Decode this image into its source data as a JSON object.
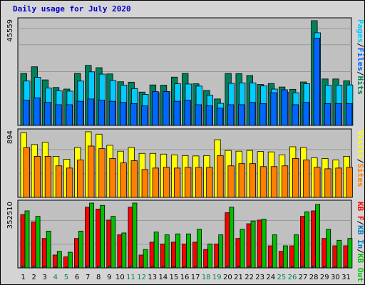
{
  "title": "Daily usage for July 2020",
  "colors": {
    "pages": "#00ccff",
    "files": "#0066ff",
    "hits": "#00805c",
    "visits": "#ffff00",
    "sites": "#ff8000",
    "kbf": "#ff0000",
    "kbin": "#0080c0",
    "kbout": "#00c000",
    "weekend": "#00805c",
    "weekday": "#000000",
    "panel": "#c0c0c0"
  },
  "chart_data": {
    "type": "bar",
    "categories": [
      "1",
      "2",
      "3",
      "4",
      "5",
      "6",
      "7",
      "8",
      "9",
      "10",
      "11",
      "12",
      "13",
      "14",
      "15",
      "16",
      "17",
      "18",
      "19",
      "20",
      "21",
      "22",
      "23",
      "24",
      "25",
      "26",
      "27",
      "28",
      "29",
      "30",
      "31"
    ],
    "weekend_days": [
      "4",
      "5",
      "11",
      "12",
      "18",
      "19",
      "25",
      "26"
    ],
    "panels": [
      {
        "max_label": "45559",
        "ylim": [
          0,
          45559
        ],
        "legend": [
          "Pages",
          "/",
          "Files",
          "/",
          "Hits"
        ],
        "series": [
          {
            "name": "Hits",
            "values": [
              22600,
              25500,
              19800,
              16500,
              15800,
              22600,
              26100,
              25100,
              22400,
              19000,
              18800,
              14500,
              17600,
              17500,
              21000,
              22600,
              18100,
              15200,
              11500,
              22600,
              22500,
              21700,
              17800,
              18200,
              16700,
              15700,
              18900,
              45559,
              20200,
              20200,
              19400
            ]
          },
          {
            "name": "Files",
            "values": [
              11000,
              12000,
              10000,
              9000,
              9000,
              10500,
              11500,
              11000,
              10500,
              10000,
              9500,
              8500,
              14700,
              14700,
              10500,
              11000,
              9000,
              8500,
              7500,
              9000,
              9000,
              10000,
              9500,
              14200,
              15500,
              9000,
              10000,
              38000,
              9500,
              9500,
              9500
            ]
          },
          {
            "name": "Pages",
            "values": [
              19300,
              20900,
              16300,
              15100,
              14900,
              19300,
              23300,
              22300,
              19500,
              17500,
              16000,
              13500,
              14300,
              14700,
              18100,
              18000,
              17100,
              13100,
              9600,
              18300,
              18500,
              18500,
              17200,
              15800,
              14500,
              14200,
              18100,
              40300,
              17500,
              17500,
              17600
            ]
          }
        ]
      },
      {
        "max_label": "894",
        "ylim": [
          0,
          894
        ],
        "legend": [
          "Visits",
          "/",
          "Sites"
        ],
        "series": [
          {
            "name": "Visits",
            "values": [
              880,
              720,
              750,
              560,
              520,
              680,
              894,
              862,
              710,
              630,
              680,
              600,
              600,
              590,
              580,
              570,
              565,
              570,
              786,
              640,
              630,
              640,
              625,
              620,
              580,
              690,
              680,
              540,
              530,
              510,
              560
            ]
          },
          {
            "name": "Sites",
            "values": [
              680,
              560,
              560,
              430,
              400,
              510,
              700,
              665,
              530,
              470,
              500,
              380,
              400,
              410,
              400,
              410,
              410,
              410,
              570,
              430,
              460,
              460,
              420,
              420,
              430,
              530,
              510,
              410,
              390,
              400,
              410
            ]
          }
        ]
      },
      {
        "max_label": "352510",
        "ylim": [
          0,
          352510
        ],
        "legend": [
          "KB F",
          "/",
          "KB In",
          "/",
          "KB Out"
        ],
        "series": [
          {
            "name": "KB F",
            "values": [
              290000,
              250000,
              160000,
              70000,
              60000,
              160000,
              330000,
              320000,
              260000,
              180000,
              330000,
              70000,
              140000,
              130000,
              140000,
              130000,
              140000,
              100000,
              130000,
              300000,
              160000,
              240000,
              260000,
              120000,
              90000,
              120000,
              280000,
              310000,
              160000,
              120000,
              120000
            ]
          },
          {
            "name": "KB In",
            "values": [
              8000,
              8000,
              6000,
              4000,
              4000,
              6000,
              9000,
              9000,
              8000,
              6000,
              9000,
              3000,
              5000,
              5000,
              5000,
              5000,
              5000,
              4000,
              5000,
              8000,
              6000,
              7000,
              8000,
              5000,
              4000,
              5000,
              8000,
              9000,
              6000,
              5000,
              5000
            ]
          },
          {
            "name": "KB Out",
            "values": [
              310000,
              280000,
              200000,
              90000,
              85000,
              200000,
              352510,
              340000,
              280000,
              190000,
              352510,
              100000,
              195000,
              180000,
              185000,
              185000,
              210000,
              130000,
              180000,
              330000,
              210000,
              255000,
              265000,
              180000,
              120000,
              180000,
              305000,
              345000,
              210000,
              150000,
              160000
            ]
          }
        ]
      }
    ]
  }
}
